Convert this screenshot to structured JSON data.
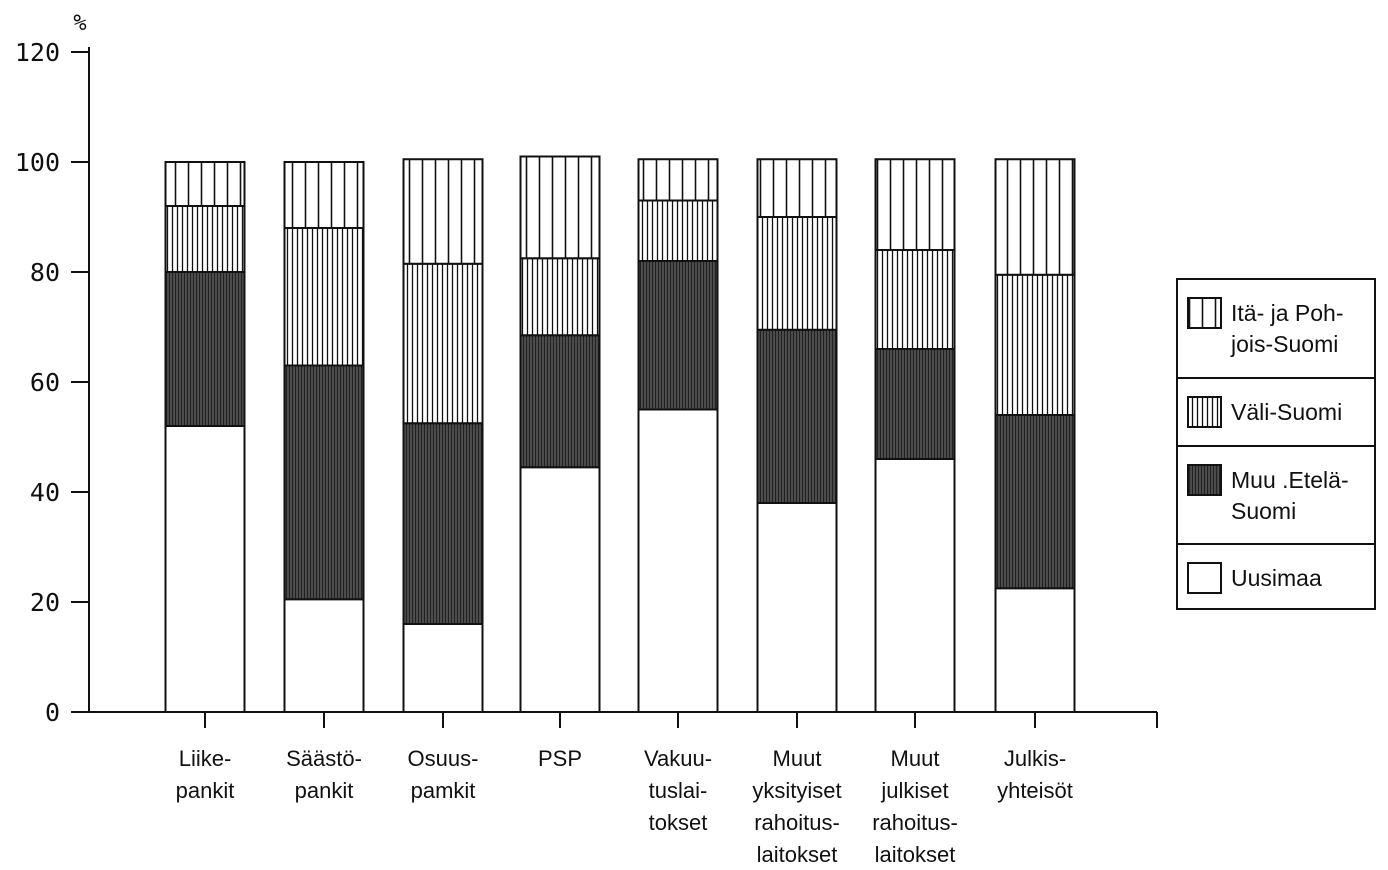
{
  "chart_data": {
    "type": "bar",
    "stacked": true,
    "unit": "%",
    "ylim": [
      0,
      120
    ],
    "yticks": [
      "0",
      "20",
      "40",
      "60",
      "80",
      "100",
      "120"
    ],
    "categories": [
      [
        "Liike-",
        "pankit"
      ],
      [
        "Säästö-",
        "pankit"
      ],
      [
        "Osuus-",
        "pamkit"
      ],
      [
        "PSP"
      ],
      [
        "Vakuu-",
        "tuslai-",
        "tokset"
      ],
      [
        "Muut",
        "yksityiset",
        "rahoitus-",
        "laitokset"
      ],
      [
        "Muut",
        "julkiset",
        "rahoitus-",
        "laitokset"
      ],
      [
        "Julkis-",
        "yhteisöt"
      ]
    ],
    "series": [
      {
        "name": "Uusimaa",
        "pattern": "blank",
        "values": [
          52,
          20.5,
          16,
          44.5,
          55,
          38,
          46,
          22.5
        ]
      },
      {
        "name": "Muu .Etelä-Suomi",
        "pattern": "dense",
        "values": [
          28,
          42.5,
          36.5,
          24,
          27,
          31.5,
          20,
          31.5
        ]
      },
      {
        "name": "Väli-Suomi",
        "pattern": "medium",
        "values": [
          12,
          25,
          29,
          14,
          11,
          20.5,
          18,
          25.5
        ]
      },
      {
        "name": "Itä- ja Pohjois-Suomi",
        "pattern": "sparse",
        "values": [
          8,
          12,
          19,
          18.5,
          7.5,
          10.5,
          16.5,
          21
        ]
      }
    ],
    "legend": {
      "position": "right",
      "entries": [
        {
          "pattern": "sparse",
          "lines": [
            "Itä- ja Poh-",
            "jois-Suomi"
          ]
        },
        {
          "pattern": "medium",
          "lines": [
            "Väli-Suomi"
          ]
        },
        {
          "pattern": "dense",
          "lines": [
            "Muu .Etelä-",
            "Suomi"
          ]
        },
        {
          "pattern": "blank",
          "lines": [
            "Uusimaa"
          ]
        }
      ]
    },
    "grid": false
  }
}
